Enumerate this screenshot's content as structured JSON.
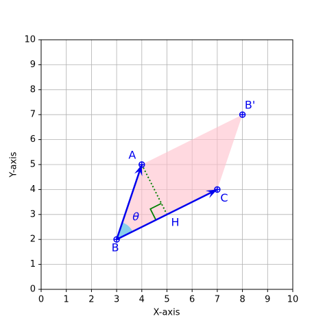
{
  "chart_data": {
    "type": "vector",
    "xlabel": "X-axis",
    "ylabel": "Y-axis",
    "xlim": [
      0,
      10
    ],
    "ylim": [
      0,
      10
    ],
    "xticks": [
      0,
      1,
      2,
      3,
      4,
      5,
      6,
      7,
      8,
      9,
      10
    ],
    "yticks": [
      0,
      1,
      2,
      3,
      4,
      5,
      6,
      7,
      8,
      9,
      10
    ],
    "grid": true,
    "points": [
      {
        "label": "A",
        "x": 4,
        "y": 5
      },
      {
        "label": "B",
        "x": 3,
        "y": 2
      },
      {
        "label": "C",
        "x": 7,
        "y": 4
      },
      {
        "label": "B'",
        "x": 8,
        "y": 7
      },
      {
        "label": "H",
        "x": 5,
        "y": 3
      }
    ],
    "angle_label": "θ",
    "vector_color": "#0000ee",
    "fill_color": "#ffc0cb",
    "perp_color": "green",
    "angle_color": "#87ceeb"
  }
}
